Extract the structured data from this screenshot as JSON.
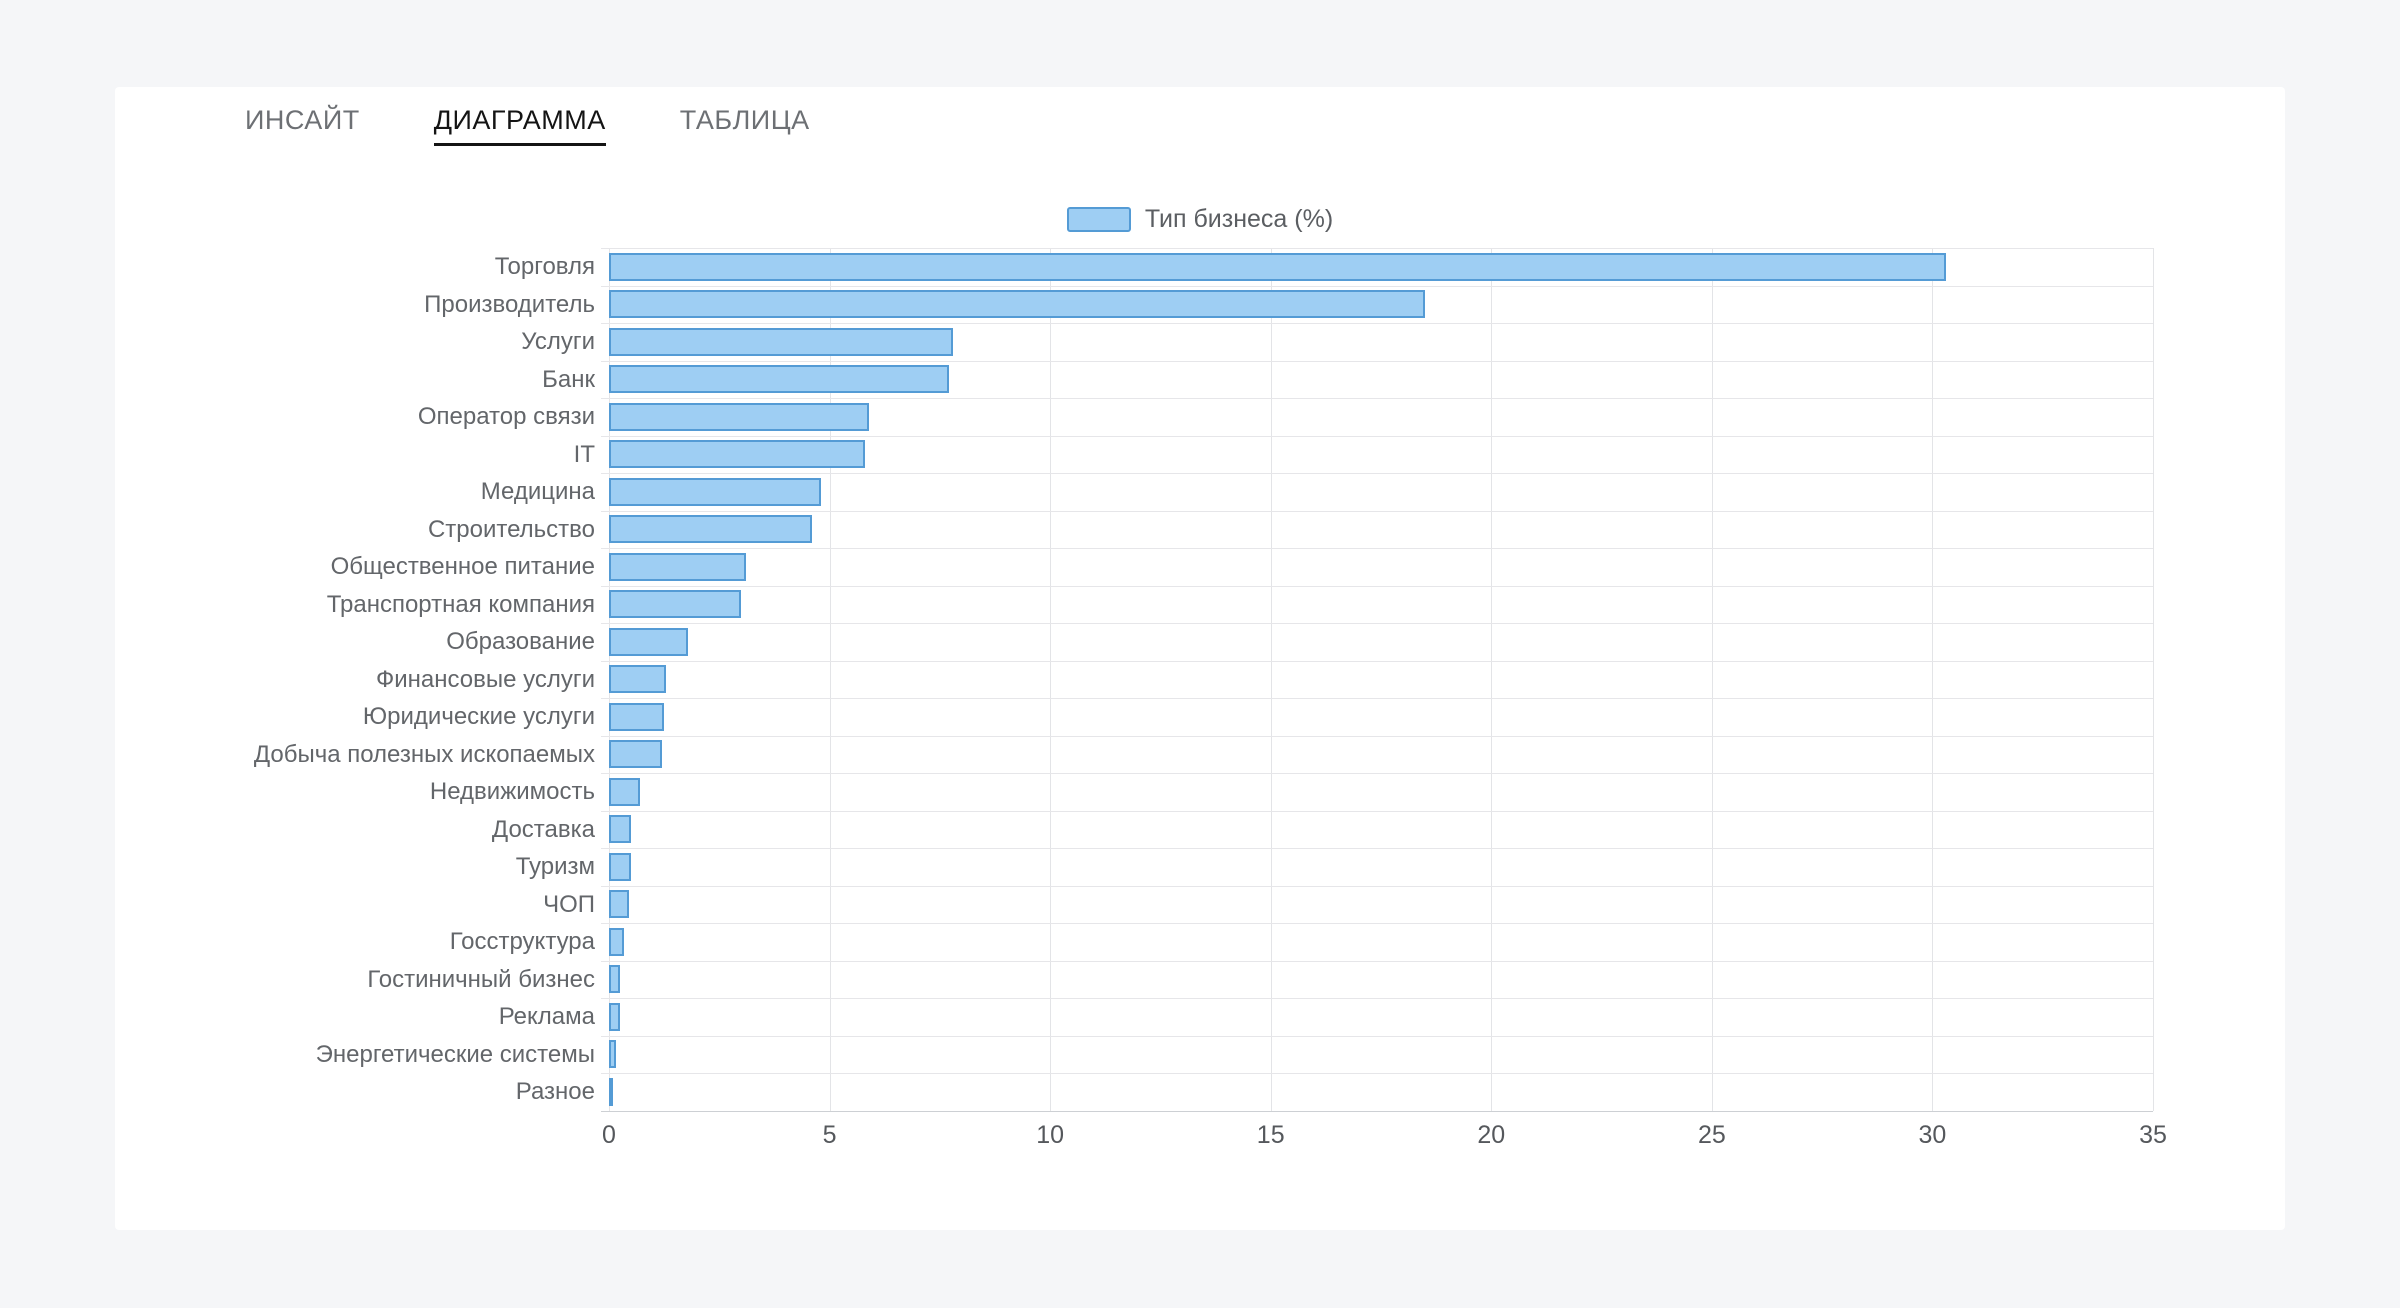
{
  "tabs": [
    {
      "label": "ИНСАЙТ",
      "active": false
    },
    {
      "label": "ДИАГРАММА",
      "active": true
    },
    {
      "label": "ТАБЛИЦА",
      "active": false
    }
  ],
  "chart_data": {
    "type": "bar",
    "orientation": "horizontal",
    "legend_label": "Тип бизнеса (%)",
    "legend_position": "top-center",
    "grid": true,
    "xlim": [
      0,
      35
    ],
    "xticks": [
      0,
      5,
      10,
      15,
      20,
      25,
      30,
      35
    ],
    "categories": [
      "Торговля",
      "Производитель",
      "Услуги",
      "Банк",
      "Оператор связи",
      "IT",
      "Медицина",
      "Строительство",
      "Общественное питание",
      "Транспортная компания",
      "Образование",
      "Финансовые услуги",
      "Юридические услуги",
      "Добыча полезных ископаемых",
      "Недвижимость",
      "Доставка",
      "Туризм",
      "ЧОП",
      "Госструктура",
      "Гостиничный бизнес",
      "Реклама",
      "Энергетические системы",
      "Разное"
    ],
    "values": [
      30.3,
      18.5,
      7.8,
      7.7,
      5.9,
      5.8,
      4.8,
      4.6,
      3.1,
      3.0,
      1.8,
      1.3,
      1.25,
      1.2,
      0.7,
      0.5,
      0.5,
      0.45,
      0.35,
      0.25,
      0.25,
      0.15,
      0.05
    ],
    "colors": {
      "bar_fill": "#9ecef3",
      "bar_border": "#549bd5",
      "grid_line": "#e3e4e7",
      "page_background": "#f5f6f8",
      "card_background": "#ffffff"
    }
  }
}
